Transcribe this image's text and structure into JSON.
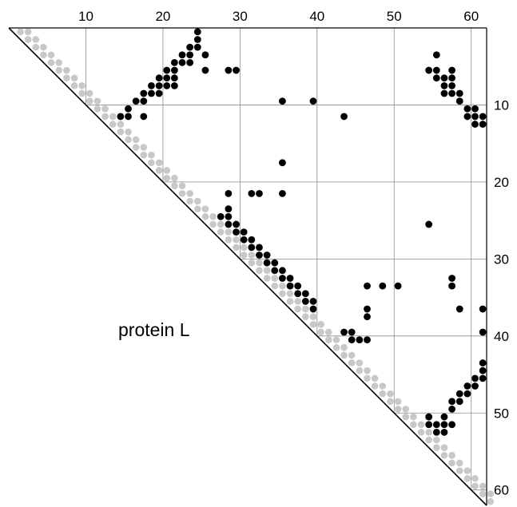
{
  "chart_data": {
    "type": "scatter",
    "title": "",
    "annotation": "protein L",
    "xlabel": "",
    "ylabel": "",
    "x_axis_position": "top",
    "y_axis_position": "right",
    "xlim": [
      1,
      62
    ],
    "ylim": [
      1,
      62
    ],
    "x_ticks": [
      10,
      20,
      30,
      40,
      50,
      60
    ],
    "y_ticks": [
      10,
      20,
      30,
      40,
      50,
      60
    ],
    "grid": true,
    "colors": {
      "contact": "#000000",
      "diagonal": "#c8c8c8",
      "grid": "#8c8c8c"
    },
    "series": [
      {
        "values": [
          [
            25,
            1
          ],
          [
            25,
            2
          ],
          [
            24,
            3
          ],
          [
            25,
            3
          ],
          [
            23,
            4
          ],
          [
            24,
            4
          ],
          [
            26,
            4
          ],
          [
            22,
            5
          ],
          [
            23,
            5
          ],
          [
            24,
            5
          ],
          [
            21,
            6
          ],
          [
            22,
            6
          ],
          [
            26,
            6
          ],
          [
            29,
            6
          ],
          [
            30,
            6
          ],
          [
            20,
            7
          ],
          [
            21,
            7
          ],
          [
            22,
            7
          ],
          [
            19,
            8
          ],
          [
            20,
            8
          ],
          [
            21,
            8
          ],
          [
            22,
            8
          ],
          [
            18,
            9
          ],
          [
            19,
            9
          ],
          [
            20,
            9
          ],
          [
            17,
            10
          ],
          [
            18,
            10
          ],
          [
            36,
            10
          ],
          [
            40,
            10
          ],
          [
            16,
            11
          ],
          [
            15,
            12
          ],
          [
            16,
            12
          ],
          [
            18,
            12
          ],
          [
            44,
            12
          ],
          [
            56,
            4
          ],
          [
            55,
            6
          ],
          [
            56,
            6
          ],
          [
            58,
            6
          ],
          [
            56,
            7
          ],
          [
            57,
            7
          ],
          [
            58,
            7
          ],
          [
            57,
            8
          ],
          [
            58,
            8
          ],
          [
            57,
            9
          ],
          [
            58,
            9
          ],
          [
            59,
            9
          ],
          [
            59,
            10
          ],
          [
            60,
            11
          ],
          [
            61,
            11
          ],
          [
            60,
            12
          ],
          [
            61,
            12
          ],
          [
            62,
            12
          ],
          [
            61,
            13
          ],
          [
            62,
            13
          ],
          [
            36,
            18
          ],
          [
            29,
            22
          ],
          [
            32,
            22
          ],
          [
            33,
            22
          ],
          [
            36,
            22
          ],
          [
            29,
            24
          ],
          [
            28,
            25
          ],
          [
            29,
            25
          ],
          [
            29,
            26
          ],
          [
            30,
            26
          ],
          [
            55,
            26
          ],
          [
            30,
            27
          ],
          [
            31,
            27
          ],
          [
            31,
            28
          ],
          [
            32,
            28
          ],
          [
            32,
            29
          ],
          [
            33,
            29
          ],
          [
            33,
            30
          ],
          [
            34,
            30
          ],
          [
            34,
            31
          ],
          [
            35,
            31
          ],
          [
            35,
            32
          ],
          [
            36,
            32
          ],
          [
            36,
            33
          ],
          [
            37,
            33
          ],
          [
            58,
            33
          ],
          [
            37,
            34
          ],
          [
            38,
            34
          ],
          [
            47,
            34
          ],
          [
            49,
            34
          ],
          [
            51,
            34
          ],
          [
            58,
            34
          ],
          [
            38,
            35
          ],
          [
            39,
            35
          ],
          [
            39,
            36
          ],
          [
            40,
            36
          ],
          [
            40,
            37
          ],
          [
            47,
            37
          ],
          [
            59,
            37
          ],
          [
            62,
            37
          ],
          [
            47,
            38
          ],
          [
            44,
            40
          ],
          [
            45,
            40
          ],
          [
            62,
            40
          ],
          [
            45,
            41
          ],
          [
            46,
            41
          ],
          [
            47,
            41
          ],
          [
            62,
            44
          ],
          [
            62,
            45
          ],
          [
            61,
            46
          ],
          [
            62,
            46
          ],
          [
            60,
            47
          ],
          [
            61,
            47
          ],
          [
            59,
            48
          ],
          [
            60,
            48
          ],
          [
            58,
            49
          ],
          [
            59,
            49
          ],
          [
            58,
            50
          ],
          [
            55,
            51
          ],
          [
            57,
            51
          ],
          [
            55,
            52
          ],
          [
            56,
            52
          ],
          [
            57,
            52
          ],
          [
            58,
            52
          ],
          [
            56,
            53
          ],
          [
            57,
            53
          ]
        ]
      }
    ]
  }
}
